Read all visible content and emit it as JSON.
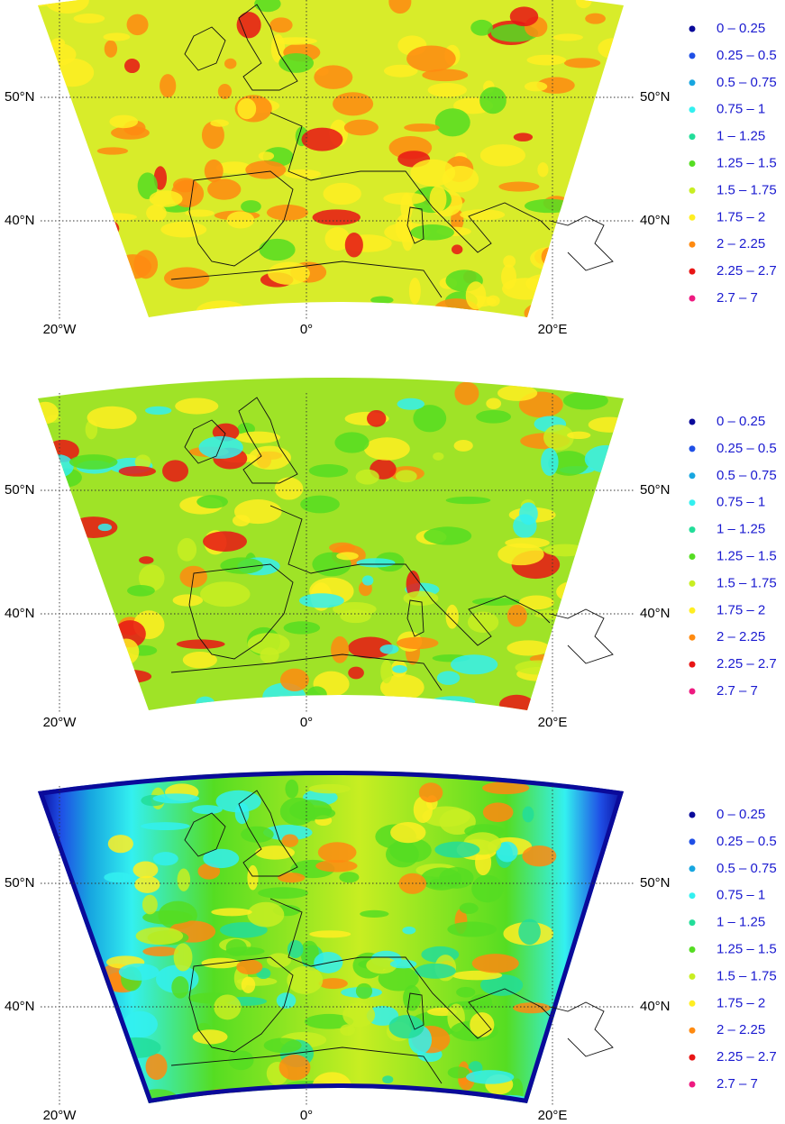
{
  "panels": [
    {
      "lat_labels": [
        "50°N",
        "40°N"
      ],
      "lon_labels": [
        "20°W",
        "0°",
        "20°E"
      ],
      "legend": [
        {
          "label": "0 – 0.25",
          "color": "#0a0a9a"
        },
        {
          "label": "0.25 – 0.5",
          "color": "#1f4fe6"
        },
        {
          "label": "0.5 – 0.75",
          "color": "#17a6e0"
        },
        {
          "label": "0.75 – 1",
          "color": "#33f0f0"
        },
        {
          "label": "1 – 1.25",
          "color": "#22dd99"
        },
        {
          "label": "1.25 – 1.5",
          "color": "#55dd22"
        },
        {
          "label": "1.5 – 1.75",
          "color": "#c8ee22"
        },
        {
          "label": "1.75 – 2",
          "color": "#ffee22"
        },
        {
          "label": "2 – 2.25",
          "color": "#ff8a10"
        },
        {
          "label": "2.25 – 2.7",
          "color": "#e81515"
        },
        {
          "label": "2.7 – 7",
          "color": "#ee1a80"
        }
      ]
    },
    {
      "lat_labels": [
        "50°N",
        "40°N"
      ],
      "lon_labels": [
        "20°W",
        "0°",
        "20°E"
      ],
      "legend": [
        {
          "label": "0 – 0.25",
          "color": "#0a0a9a"
        },
        {
          "label": "0.25 – 0.5",
          "color": "#1f4fe6"
        },
        {
          "label": "0.5 – 0.75",
          "color": "#17a6e0"
        },
        {
          "label": "0.75 – 1",
          "color": "#33f0f0"
        },
        {
          "label": "1 – 1.25",
          "color": "#22dd99"
        },
        {
          "label": "1.25 – 1.5",
          "color": "#55dd22"
        },
        {
          "label": "1.5 – 1.75",
          "color": "#c8ee22"
        },
        {
          "label": "1.75 – 2",
          "color": "#ffee22"
        },
        {
          "label": "2 – 2.25",
          "color": "#ff8a10"
        },
        {
          "label": "2.25 – 2.7",
          "color": "#e81515"
        },
        {
          "label": "2.7 – 7",
          "color": "#ee1a80"
        }
      ]
    },
    {
      "lat_labels": [
        "50°N",
        "40°N"
      ],
      "lon_labels": [
        "20°W",
        "0°",
        "20°E"
      ],
      "legend": [
        {
          "label": "0 – 0.25",
          "color": "#0a0a9a"
        },
        {
          "label": "0.25 – 0.5",
          "color": "#1f4fe6"
        },
        {
          "label": "0.5 – 0.75",
          "color": "#17a6e0"
        },
        {
          "label": "0.75 – 1",
          "color": "#33f0f0"
        },
        {
          "label": "1 – 1.25",
          "color": "#22dd99"
        },
        {
          "label": "1.25 – 1.5",
          "color": "#55dd22"
        },
        {
          "label": "1.5 – 1.75",
          "color": "#c8ee22"
        },
        {
          "label": "1.75 – 2",
          "color": "#ffee22"
        },
        {
          "label": "2 – 2.25",
          "color": "#ff8a10"
        },
        {
          "label": "2.25 – 2.7",
          "color": "#e81515"
        },
        {
          "label": "2.7 – 7",
          "color": "#ee1a80"
        }
      ]
    }
  ]
}
